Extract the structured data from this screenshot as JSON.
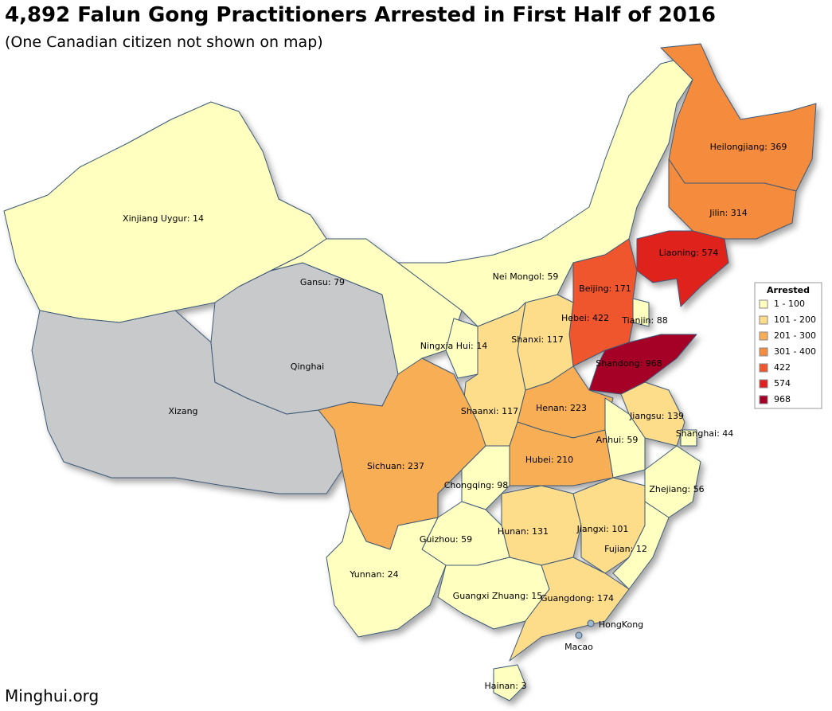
{
  "header": {
    "title": "4,892 Falun Gong Practitioners Arrested in First Half of 2016",
    "subtitle": "(One Canadian citizen not shown on map)"
  },
  "footer": "Minghui.org",
  "map": {
    "no_data_color": "#c8c9cb",
    "legend": {
      "title": "Arrested",
      "items": [
        {
          "label": "1 - 100",
          "min": 1,
          "max": 100,
          "color": "#ffffc0"
        },
        {
          "label": "101 - 200",
          "min": 101,
          "max": 200,
          "color": "#fddc8a"
        },
        {
          "label": "201 - 300",
          "min": 201,
          "max": 300,
          "color": "#f8ae55"
        },
        {
          "label": "301 - 400",
          "min": 301,
          "max": 400,
          "color": "#f58c3e"
        },
        {
          "label": "422",
          "min": 422,
          "max": 422,
          "color": "#f0562e"
        },
        {
          "label": "574",
          "min": 574,
          "max": 574,
          "color": "#e0211f"
        },
        {
          "label": "968",
          "min": 968,
          "max": 968,
          "color": "#a50026"
        }
      ]
    },
    "regions": [
      {
        "label": "Xinjiang Uygur: 14",
        "value": 14
      },
      {
        "label": "Xizang",
        "value": null
      },
      {
        "label": "Qinghai",
        "value": null
      },
      {
        "label": "Gansu: 79",
        "value": 79
      },
      {
        "label": "Nei Mongol: 59",
        "value": 59
      },
      {
        "label": "Heilongjiang: 369",
        "value": 369
      },
      {
        "label": "Jilin: 314",
        "value": 314
      },
      {
        "label": "Liaoning: 574",
        "value": 574
      },
      {
        "label": "Beijing: 171",
        "value": 171
      },
      {
        "label": "Tianjin: 88",
        "value": 88
      },
      {
        "label": "Hebei: 422",
        "value": 422
      },
      {
        "label": "Shanxi: 117",
        "value": 117
      },
      {
        "label": "Shandong: 968",
        "value": 968
      },
      {
        "label": "Ningxia Hui: 14",
        "value": 14
      },
      {
        "label": "Shaanxi: 117",
        "value": 117
      },
      {
        "label": "Henan: 223",
        "value": 223
      },
      {
        "label": "Jiangsu: 139",
        "value": 139
      },
      {
        "label": "Shanghai: 44",
        "value": 44
      },
      {
        "label": "Anhui: 59",
        "value": 59
      },
      {
        "label": "Sichuan: 237",
        "value": 237
      },
      {
        "label": "Chongqing: 98",
        "value": 98
      },
      {
        "label": "Hubei: 210",
        "value": 210
      },
      {
        "label": "Zhejiang: 56",
        "value": 56
      },
      {
        "label": "Hunan: 131",
        "value": 131
      },
      {
        "label": "Jiangxi: 101",
        "value": 101
      },
      {
        "label": "Fujian: 12",
        "value": 12
      },
      {
        "label": "Guizhou: 59",
        "value": 59
      },
      {
        "label": "Yunnan: 24",
        "value": 24
      },
      {
        "label": "Guangxi Zhuang: 15",
        "value": 15
      },
      {
        "label": "Guangdong: 174",
        "value": 174
      },
      {
        "label": "Hainan: 3",
        "value": 3
      }
    ],
    "places": [
      "HongKong",
      "Macao"
    ]
  }
}
